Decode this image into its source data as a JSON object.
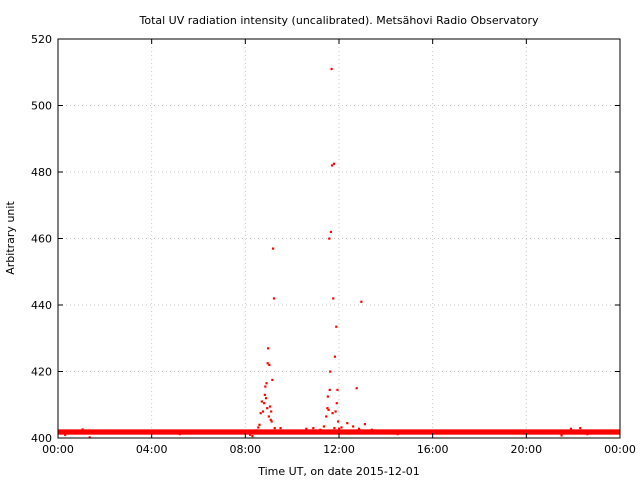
{
  "chart_data": {
    "type": "scatter",
    "title": "Total UV radiation intensity (uncalibrated). Metsähovi Radio Observatory",
    "xlabel": "Time UT, on date 2015-12-01",
    "ylabel": "Arbitrary unit",
    "xlim": [
      0,
      24
    ],
    "ylim": [
      400,
      520
    ],
    "x_ticks": [
      0,
      4,
      8,
      12,
      16,
      20,
      24
    ],
    "x_tick_labels": [
      "00:00",
      "04:00",
      "08:00",
      "12:00",
      "16:00",
      "20:00",
      "00:00"
    ],
    "y_ticks": [
      400,
      420,
      440,
      460,
      480,
      500,
      520
    ],
    "y_tick_labels": [
      "400",
      "420",
      "440",
      "460",
      "480",
      "500",
      "520"
    ],
    "grid": true,
    "marker_color": "#ff0000",
    "baseline": {
      "x_range": [
        0,
        24
      ],
      "y_min": 401.0,
      "y_max": 402.6
    },
    "series": [
      {
        "values": [
          [
            0.3,
            401.0
          ],
          [
            1.05,
            402.6
          ],
          [
            1.35,
            400.2
          ],
          [
            2.1,
            402.2
          ],
          [
            5.2,
            401.2
          ],
          [
            8.2,
            401.0
          ],
          [
            8.3,
            400.6
          ],
          [
            8.45,
            402.3
          ],
          [
            8.55,
            403.2
          ],
          [
            8.6,
            404.0
          ],
          [
            8.65,
            407.5
          ],
          [
            8.7,
            411.0
          ],
          [
            8.75,
            408.0
          ],
          [
            8.8,
            410.5
          ],
          [
            8.83,
            413.0
          ],
          [
            8.85,
            415.5
          ],
          [
            8.88,
            412.0
          ],
          [
            8.9,
            416.5
          ],
          [
            8.93,
            409.0
          ],
          [
            8.95,
            422.5
          ],
          [
            8.97,
            427.0
          ],
          [
            9.0,
            406.5
          ],
          [
            9.02,
            422.0
          ],
          [
            9.05,
            409.5
          ],
          [
            9.08,
            405.5
          ],
          [
            9.1,
            408.0
          ],
          [
            9.12,
            405.0
          ],
          [
            9.15,
            417.5
          ],
          [
            9.18,
            457.0
          ],
          [
            9.22,
            442.0
          ],
          [
            9.25,
            403.0
          ],
          [
            9.35,
            401.5
          ],
          [
            9.5,
            403.0
          ],
          [
            10.6,
            402.8
          ],
          [
            10.9,
            403.0
          ],
          [
            11.2,
            402.5
          ],
          [
            11.35,
            403.5
          ],
          [
            11.45,
            406.5
          ],
          [
            11.5,
            409.0
          ],
          [
            11.52,
            412.5
          ],
          [
            11.55,
            408.5
          ],
          [
            11.58,
            460.0
          ],
          [
            11.6,
            414.5
          ],
          [
            11.62,
            420.0
          ],
          [
            11.65,
            462.0
          ],
          [
            11.68,
            511.0
          ],
          [
            11.7,
            482.0
          ],
          [
            11.72,
            407.5
          ],
          [
            11.75,
            442.0
          ],
          [
            11.78,
            482.5
          ],
          [
            11.8,
            403.0
          ],
          [
            11.82,
            424.5
          ],
          [
            11.85,
            408.0
          ],
          [
            11.88,
            433.5
          ],
          [
            11.9,
            410.5
          ],
          [
            11.93,
            414.5
          ],
          [
            11.96,
            405.0
          ],
          [
            12.0,
            402.8
          ],
          [
            12.1,
            403.2
          ],
          [
            12.35,
            404.5
          ],
          [
            12.6,
            403.5
          ],
          [
            12.75,
            415.0
          ],
          [
            12.85,
            402.8
          ],
          [
            12.95,
            441.0
          ],
          [
            13.1,
            404.2
          ],
          [
            13.4,
            402.5
          ],
          [
            14.5,
            401.2
          ],
          [
            21.3,
            401.5
          ],
          [
            21.5,
            400.8
          ],
          [
            21.9,
            402.8
          ],
          [
            22.3,
            403.0
          ],
          [
            22.6,
            401.2
          ]
        ]
      }
    ]
  }
}
